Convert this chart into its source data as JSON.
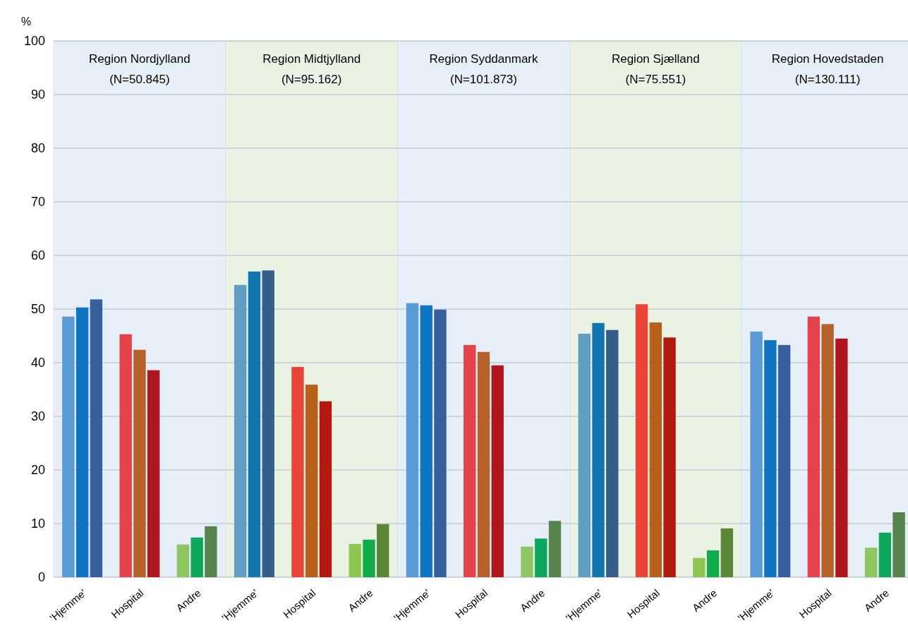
{
  "chart_data": [
    {
      "type": "bar",
      "title": "Region Nordjylland",
      "subtitle": "(N=50.845)",
      "ylabel": "%",
      "categories": [
        "'Hjemme'",
        "Hospital",
        "Andre"
      ],
      "ylim": [
        0,
        100
      ],
      "yticks": [
        0,
        10,
        20,
        30,
        40,
        50,
        60,
        70,
        80,
        90,
        100
      ],
      "grid": "y",
      "series": [
        {
          "values": [
            48.6,
            45.3,
            6.1
          ],
          "colors": [
            "#5b9bd5",
            "#e6424b",
            "#8dc660"
          ]
        },
        {
          "values": [
            50.3,
            42.4,
            7.4
          ],
          "colors": [
            "#0f75c3",
            "#b5612a",
            "#0ea85c"
          ]
        },
        {
          "values": [
            51.8,
            38.6,
            9.5
          ],
          "colors": [
            "#365f9e",
            "#b01520",
            "#57834c"
          ]
        }
      ]
    },
    {
      "type": "bar",
      "title": "Region Midtjylland",
      "subtitle": "(N=95.162)",
      "categories": [
        "'Hjemme'",
        "Hospital",
        "Andre"
      ],
      "ylim": [
        0,
        100
      ],
      "yticks": [
        0,
        10,
        20,
        30,
        40,
        50,
        60,
        70,
        80,
        90,
        100
      ],
      "grid": "y",
      "tick_labels": "x",
      "series": [
        {
          "values": [
            54.5,
            39.2,
            6.2
          ],
          "colors": [
            "#5f9ec2",
            "#e84536",
            "#8dc650"
          ]
        },
        {
          "values": [
            57.0,
            35.9,
            7.0
          ],
          "colors": [
            "#1277b0",
            "#b66019",
            "#12ab4b"
          ]
        },
        {
          "values": [
            57.2,
            32.8,
            9.9
          ],
          "colors": [
            "#345f8a",
            "#b3190e",
            "#5b8737"
          ]
        }
      ]
    },
    {
      "type": "bar",
      "title": "Region Syddanmark",
      "subtitle": "(N=101.873)",
      "categories": [
        "'Hjemme'",
        "Hospital",
        "Andre"
      ],
      "ylim": [
        0,
        100
      ],
      "yticks": [
        0,
        10,
        20,
        30,
        40,
        50,
        60,
        70,
        80,
        90,
        100
      ],
      "grid": "y",
      "tick_labels": "x",
      "series": [
        {
          "values": [
            51.1,
            43.3,
            5.7
          ],
          "colors": [
            "#5b9bd5",
            "#e6424b",
            "#8dc660"
          ]
        },
        {
          "values": [
            50.7,
            42.0,
            7.2
          ],
          "colors": [
            "#0f75c3",
            "#b5612a",
            "#0ea85c"
          ]
        },
        {
          "values": [
            49.9,
            39.5,
            10.5
          ],
          "colors": [
            "#365f9e",
            "#b01520",
            "#57834c"
          ]
        }
      ]
    },
    {
      "type": "bar",
      "title": "Region Sjælland",
      "subtitle": "(N=75.551)",
      "categories": [
        "'Hjemme'",
        "Hospital",
        "Andre"
      ],
      "ylim": [
        0,
        100
      ],
      "yticks": [
        0,
        10,
        20,
        30,
        40,
        50,
        60,
        70,
        80,
        90,
        100
      ],
      "grid": "y",
      "tick_labels": "x",
      "series": [
        {
          "values": [
            45.4,
            50.9,
            3.6
          ],
          "colors": [
            "#5f9ec2",
            "#e84536",
            "#8dc650"
          ]
        },
        {
          "values": [
            47.4,
            47.5,
            5.0
          ],
          "colors": [
            "#1277b0",
            "#b66019",
            "#12ab4b"
          ]
        },
        {
          "values": [
            46.1,
            44.7,
            9.1
          ],
          "colors": [
            "#345f8a",
            "#b3190e",
            "#5b8737"
          ]
        }
      ]
    },
    {
      "type": "bar",
      "title": "Region Hovedstaden",
      "subtitle": "(N=130.111)",
      "categories": [
        "'Hjemme'",
        "Hospital",
        "Andre"
      ],
      "ylim": [
        0,
        100
      ],
      "yticks": [
        0,
        10,
        20,
        30,
        40,
        50,
        60,
        70,
        80,
        90,
        100
      ],
      "grid": "y",
      "tick_labels": "x",
      "series": [
        {
          "values": [
            45.8,
            48.6,
            5.5
          ],
          "colors": [
            "#5b9bd5",
            "#e6424b",
            "#8dc660"
          ]
        },
        {
          "values": [
            44.2,
            47.2,
            8.3
          ],
          "colors": [
            "#0f75c3",
            "#b5612a",
            "#0ea85c"
          ]
        },
        {
          "values": [
            43.3,
            44.5,
            12.1
          ],
          "colors": [
            "#365f9e",
            "#b01520",
            "#57834c"
          ]
        }
      ]
    }
  ]
}
